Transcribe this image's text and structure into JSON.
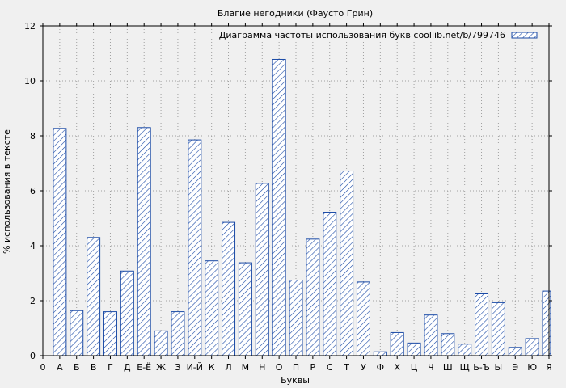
{
  "chart_data": {
    "type": "bar",
    "title": "Благие негодники (Фаусто Грин)",
    "xlabel": "Буквы",
    "ylabel": "% использования в тексте",
    "legend": "Диаграмма частоты использования букв coollib.net/b/799746",
    "legend_position": "top-right",
    "grid": true,
    "ylim": [
      0,
      12
    ],
    "yticks": [
      "0",
      "2",
      "4",
      "6",
      "8",
      "10",
      "12"
    ],
    "x_axis_labels": [
      "0",
      "А",
      "Б",
      "В",
      "Г",
      "Д",
      "Е-Ё",
      "Ж",
      "З",
      "И-Й",
      "К",
      "Л",
      "М",
      "Н",
      "О",
      "П",
      "Р",
      "С",
      "Т",
      "У",
      "Ф",
      "Х",
      "Ц",
      "Ч",
      "Ш",
      "Щ",
      "Ь-Ъ",
      "Ы",
      "Э",
      "Ю",
      "Я"
    ],
    "categories": [
      "А",
      "Б",
      "В",
      "Г",
      "Д",
      "Е-Ё",
      "Ж",
      "З",
      "И-Й",
      "К",
      "Л",
      "М",
      "Н",
      "О",
      "П",
      "Р",
      "С",
      "Т",
      "У",
      "Ф",
      "Х",
      "Ц",
      "Ч",
      "Ш",
      "Щ",
      "Ь-Ъ",
      "Ы",
      "Э",
      "Ю",
      "Я"
    ],
    "values": [
      8.27,
      1.64,
      4.3,
      1.6,
      3.08,
      8.3,
      0.9,
      1.6,
      7.85,
      3.45,
      4.85,
      3.38,
      6.27,
      10.78,
      2.75,
      4.24,
      5.22,
      6.72,
      2.68,
      0.14,
      0.84,
      0.46,
      1.48,
      0.8,
      0.42,
      2.25,
      1.93,
      0.3,
      0.62,
      2.35
    ],
    "colors": {
      "bar_stroke": "#1a4aa6",
      "background": "#f0f0f0"
    }
  }
}
